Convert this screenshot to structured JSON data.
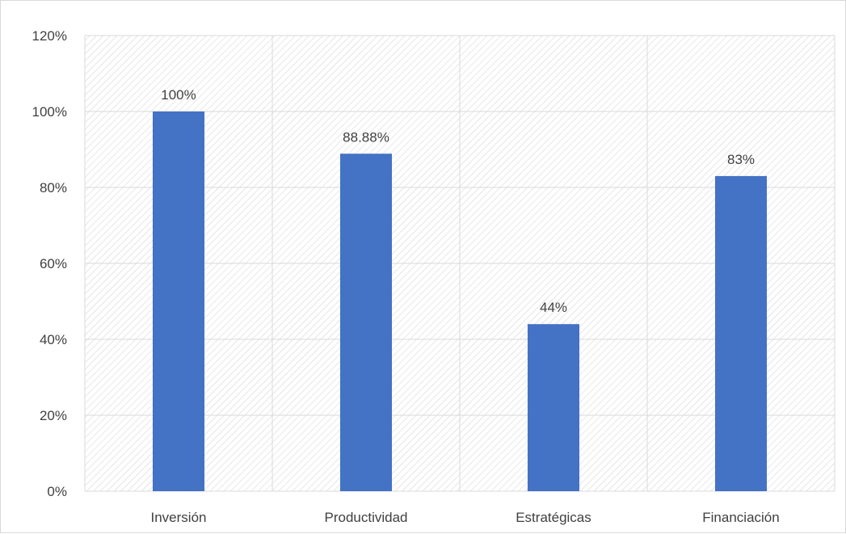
{
  "chart_data": {
    "type": "bar",
    "title": "",
    "xlabel": "",
    "ylabel": "",
    "categories": [
      "Inversión",
      "Productividad",
      "Estratégicas",
      "Financiación"
    ],
    "values": [
      100,
      88.88,
      44,
      83
    ],
    "data_labels": [
      "100%",
      "88.88%",
      "44%",
      "83%"
    ],
    "ylim": [
      0,
      120
    ],
    "yticks": [
      0,
      20,
      40,
      60,
      80,
      100,
      120
    ],
    "ytick_labels": [
      "0%",
      "20%",
      "40%",
      "60%",
      "80%",
      "100%",
      "120%"
    ],
    "grid": true,
    "legend": false,
    "plot_background": "diagonal-hatch",
    "colors": {
      "bar": "#4472C4",
      "grid": "#d9d9d9",
      "hatch": "#d0d0d0",
      "text": "#404040"
    }
  }
}
